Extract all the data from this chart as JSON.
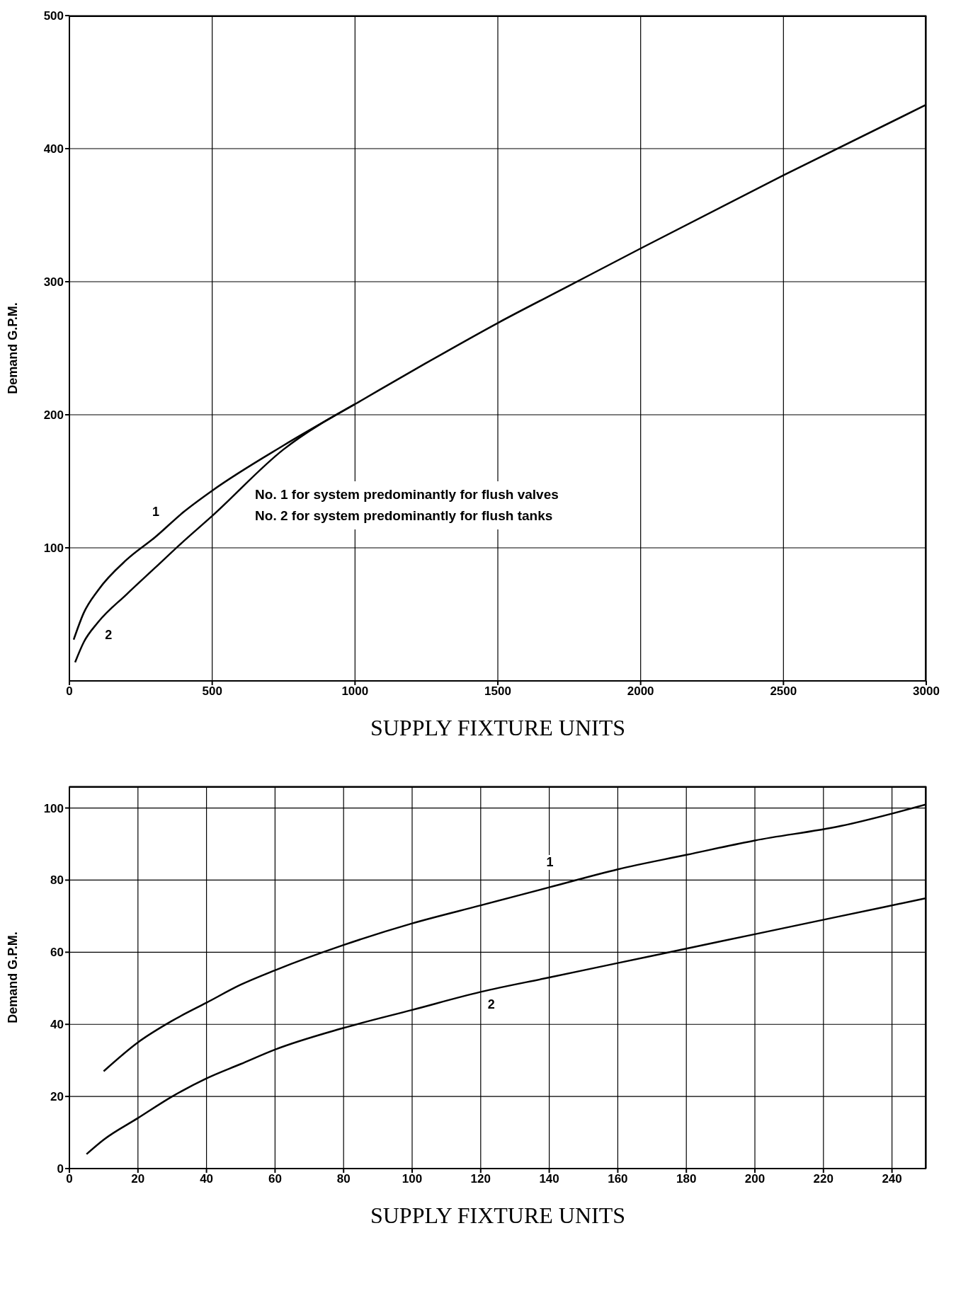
{
  "chart_data": [
    {
      "type": "line",
      "xlabel": "SUPPLY FIXTURE UNITS",
      "ylabel": "Demand G.P.M.",
      "xlim": [
        0,
        3000
      ],
      "xticks": [
        0,
        500,
        1000,
        1500,
        2000,
        2500,
        3000
      ],
      "ylim": [
        0,
        500
      ],
      "yticks": [
        100,
        200,
        300,
        400,
        500
      ],
      "grid": true,
      "marker": "none",
      "line_style": "solid",
      "annotations": [
        "No. 1 for system predominantly for flush valves",
        "No. 2 for system predominantly for flush tanks"
      ],
      "series": [
        {
          "name": "1",
          "color": "#000000",
          "x": [
            15,
            50,
            100,
            200,
            300,
            400,
            500,
            750,
            1000,
            1250,
            1500,
            1750,
            2000,
            2500,
            3000
          ],
          "values": [
            31,
            51,
            68,
            91,
            108,
            127,
            143,
            177,
            208,
            239,
            269,
            297,
            325,
            380,
            433
          ]
        },
        {
          "name": "2",
          "color": "#000000",
          "x": [
            20,
            50,
            100,
            200,
            300,
            400,
            500,
            750,
            1000
          ],
          "values": [
            14,
            29,
            44,
            65,
            85,
            105,
            124,
            174,
            208
          ]
        }
      ]
    },
    {
      "type": "line",
      "xlabel": "SUPPLY FIXTURE UNITS",
      "ylabel": "Demand G.P.M.",
      "xlim": [
        0,
        250
      ],
      "xticks": [
        0,
        20,
        40,
        60,
        80,
        100,
        120,
        140,
        160,
        180,
        200,
        220,
        240
      ],
      "ylim": [
        0,
        106
      ],
      "yticks": [
        0,
        20,
        40,
        60,
        80,
        100
      ],
      "grid": true,
      "marker": "none",
      "line_style": "solid",
      "series": [
        {
          "name": "1",
          "color": "#000000",
          "x": [
            10,
            20,
            30,
            40,
            50,
            60,
            80,
            100,
            120,
            140,
            160,
            180,
            200,
            225,
            250
          ],
          "values": [
            27,
            35,
            41,
            46,
            51,
            55,
            62,
            68,
            73,
            78,
            83,
            87,
            91,
            95,
            101
          ]
        },
        {
          "name": "2",
          "color": "#000000",
          "x": [
            5,
            10,
            20,
            30,
            40,
            50,
            60,
            80,
            100,
            120,
            140,
            160,
            180,
            200,
            225,
            250
          ],
          "values": [
            4,
            8,
            14,
            20,
            25,
            29,
            33,
            39,
            44,
            49,
            53,
            57,
            61,
            65,
            70,
            75
          ]
        }
      ]
    }
  ]
}
